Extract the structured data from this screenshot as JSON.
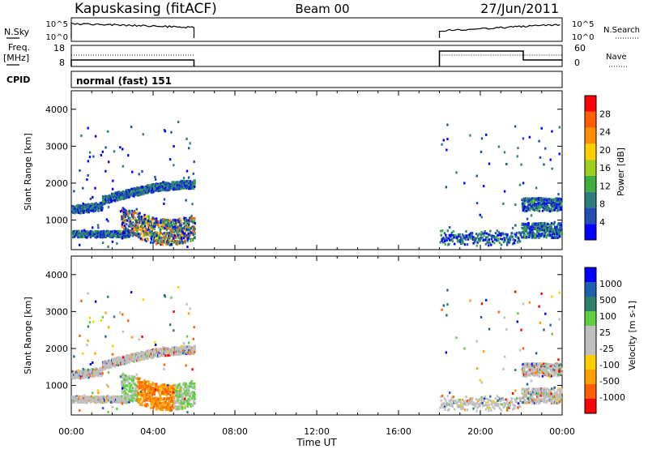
{
  "header": {
    "station": "Kapuskasing (fitACF)",
    "beam": "Beam 00",
    "date": "27/Jun/2011"
  },
  "top_panels": {
    "nsky_label": "N.Sky",
    "nsky_ticks": [
      "10^5",
      "10^0"
    ],
    "nsearch_label": "N.Search",
    "nsearch_ticks": [
      "10^5",
      "10^0"
    ],
    "freq_label_1": "Freq.",
    "freq_label_2": "[MHz]",
    "freq_ticks": [
      "18",
      "8"
    ],
    "nave_label": "Nave",
    "nave_ticks": [
      "60",
      "0"
    ],
    "cpid_label": "CPID",
    "mode_text": "normal (fast) 151"
  },
  "colors": {
    "power": [
      "#0000ff",
      "#1f4fb0",
      "#2f7f7f",
      "#3faf3f",
      "#9fcf1f",
      "#ffcf00",
      "#ff8f00",
      "#ff5f00",
      "#ff0000"
    ],
    "velocity": [
      "#ff0000",
      "#ff5f00",
      "#ff9f00",
      "#ffcf00",
      "#c0c0c0",
      "#bfbfbf",
      "#5fcf3f",
      "#2f7f6f",
      "#1f5faf",
      "#0000ff"
    ]
  },
  "chart_data": [
    {
      "type": "heatmap",
      "name": "power",
      "xlabel": "",
      "ylabel": "Slant Range [km]",
      "y_ticks": [
        "1000",
        "2000",
        "3000",
        "4000"
      ],
      "colorbar_label": "Power [dB]",
      "colorbar_ticks": [
        "4",
        "8",
        "12",
        "16",
        "20",
        "24",
        "28"
      ],
      "time_range_hours": [
        0,
        24
      ],
      "range_km": [
        200,
        4500
      ],
      "observation_intervals_hours": [
        [
          0,
          6
        ],
        [
          18,
          24
        ]
      ],
      "echo_features": [
        {
          "t_start": 0.0,
          "t_end": 6.0,
          "range_start": 1000,
          "range_end": 2200
        },
        {
          "t_start": 0.0,
          "t_end": 2.8,
          "range_start": 500,
          "range_end": 800
        },
        {
          "t_start": 2.5,
          "t_end": 6.0,
          "range_start": 400,
          "range_end": 1400
        },
        {
          "t_start": 18.0,
          "t_end": 22.0,
          "range_start": 300,
          "range_end": 700
        },
        {
          "t_start": 22.0,
          "t_end": 24.0,
          "range_start": 400,
          "range_end": 1700
        }
      ]
    },
    {
      "type": "heatmap",
      "name": "velocity",
      "xlabel": "Time UT",
      "ylabel": "Slant Range [km]",
      "y_ticks": [
        "1000",
        "2000",
        "3000",
        "4000"
      ],
      "colorbar_label": "Velocity [m s-1]",
      "colorbar_ticks": [
        "1000",
        "500",
        "100",
        "25",
        "-25",
        "-100",
        "-500",
        "-1000"
      ],
      "x_ticks": [
        "00:00",
        "04:00",
        "08:00",
        "12:00",
        "16:00",
        "20:00",
        "00:00"
      ],
      "time_range_hours": [
        0,
        24
      ],
      "range_km": [
        200,
        4500
      ],
      "observation_intervals_hours": [
        [
          0,
          6
        ],
        [
          18,
          24
        ]
      ]
    }
  ]
}
